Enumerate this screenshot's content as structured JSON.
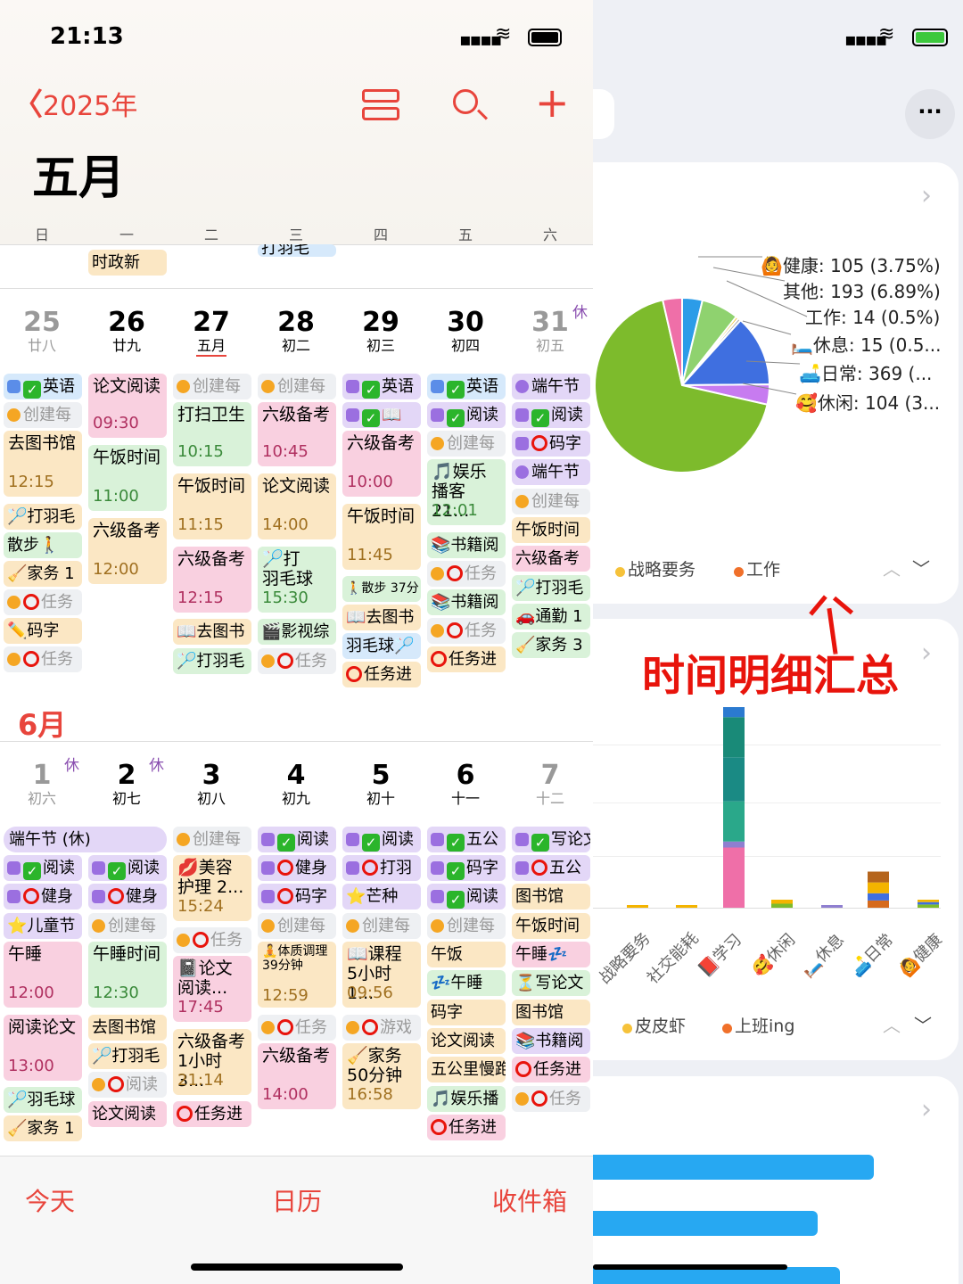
{
  "status_bar": {
    "time": "21:13"
  },
  "header": {
    "back_year": "2025年",
    "month_title": "五月"
  },
  "weekdays": [
    "日",
    "一",
    "二",
    "三",
    "四",
    "五",
    "六"
  ],
  "top_events": {
    "monday": "时政新",
    "wednesday": "打羽毛"
  },
  "week1": {
    "days": [
      {
        "num": "25",
        "lunar": "廿八"
      },
      {
        "num": "26",
        "lunar": "廿九"
      },
      {
        "num": "27",
        "lunar": "五月"
      },
      {
        "num": "28",
        "lunar": "初二"
      },
      {
        "num": "29",
        "lunar": "初三"
      },
      {
        "num": "30",
        "lunar": "初四"
      },
      {
        "num": "31",
        "lunar": "初五"
      }
    ],
    "holiday_mark": "休",
    "events": {
      "sun": [
        "英语",
        "创建每",
        "去图书馆",
        "12:15",
        "🏸打羽毛",
        "散步🚶",
        "🧹家务 1",
        "任务",
        "✏️码字",
        "任务"
      ],
      "mon": [
        "论文阅读",
        "09:30",
        "午饭时间",
        "11:00",
        "六级备考",
        "12:00"
      ],
      "tue": [
        "创建每",
        "打扫卫生",
        "10:15",
        "午饭时间",
        "11:15",
        "六级备考",
        "12:15",
        "📖去图书",
        "🏸打羽毛"
      ],
      "wed": [
        "创建每",
        "六级备考",
        "10:45",
        "论文阅读",
        "14:00",
        "🏸打",
        "羽毛球",
        "15:30",
        "🎬影视综",
        "任务"
      ],
      "thu": [
        "英语",
        "📖",
        "六级备考",
        "10:00",
        "午饭时间",
        "11:45",
        "🚶散步 37分",
        "📖去图书",
        "羽毛球🏸",
        "任务进"
      ],
      "fri": [
        "英语",
        "阅读",
        "创建每",
        "🎵娱乐",
        "播客 21...",
        "12:01",
        "📚书籍阅",
        "任务",
        "📚书籍阅",
        "任务",
        "任务进"
      ],
      "sat": [
        "端午节",
        "阅读",
        "码字",
        "端午节",
        "创建每",
        "午饭时间",
        "六级备考",
        "🏸打羽毛",
        "🚗通勤 1",
        "🧹家务 3"
      ]
    }
  },
  "june": {
    "label": "6月"
  },
  "week2": {
    "days": [
      {
        "num": "1",
        "lunar": "初六"
      },
      {
        "num": "2",
        "lunar": "初七"
      },
      {
        "num": "3",
        "lunar": "初八"
      },
      {
        "num": "4",
        "lunar": "初九"
      },
      {
        "num": "5",
        "lunar": "初十"
      },
      {
        "num": "6",
        "lunar": "十一"
      },
      {
        "num": "7",
        "lunar": "十二"
      }
    ],
    "holiday_mark": "休",
    "allday": "端午节 (休)",
    "events": {
      "sun": [
        "阅读",
        "健身",
        "⭐儿童节",
        "午睡",
        "12:00",
        "阅读论文",
        "13:00",
        "🏸羽毛球",
        "🧹家务 1"
      ],
      "mon": [
        "阅读",
        "健身",
        "创建每",
        "午睡时间",
        "12:30",
        "去图书馆",
        "🏸打羽毛",
        "阅读",
        "论文阅读"
      ],
      "tue": [
        "创建每",
        "💋美容",
        "护理 2...",
        "15:24",
        "任务",
        "📓论文",
        "阅读...",
        "17:45",
        "六级备考",
        "1小时 3...",
        "21:14",
        "任务进"
      ],
      "wed": [
        "阅读",
        "健身",
        "码字",
        "创建每",
        "🧘体质调理",
        "39分钟",
        "12:59",
        "任务",
        "六级备考",
        "14:00"
      ],
      "thu": [
        "阅读",
        "打羽",
        "⭐芒种",
        "创建每",
        "📖课程",
        "5小时1...",
        "09:56",
        "游戏",
        "🧹家务",
        "50分钟",
        "16:58"
      ],
      "fri": [
        "五公",
        "码字",
        "阅读",
        "创建每",
        "午饭",
        "💤午睡",
        "码字",
        "论文阅读",
        "五公里慢跑",
        "🎵娱乐播",
        "任务进"
      ],
      "sat": [
        "写论文",
        "五公",
        "图书馆",
        "午饭时间",
        "午睡💤",
        "⏳写论文",
        "图书馆",
        "📚书籍阅",
        "任务进",
        "任务"
      ]
    }
  },
  "tabbar": {
    "today": "今天",
    "calendar": "日历",
    "inbox": "收件箱"
  },
  "right_panel": {
    "more_label": "···",
    "pie_labels": [
      "🙆健康: 105 (3.75%)",
      "其他: 193 (6.89%)",
      "工作: 14 (0.5%)",
      "🛏️休息: 15 (0.5...",
      "🛋️日常: 369 (...",
      "🥰休闲: 104 (3..."
    ],
    "legend1": [
      "战略要务",
      "工作"
    ],
    "annotation": "时间明细汇总",
    "bar_categories": [
      "战略要务",
      "社交能耗",
      "📕学习",
      "🥰休闲",
      "🛏️休息",
      "🛋️日常",
      "🙆健康"
    ],
    "legend2": [
      "皮皮虾",
      "上班ing"
    ],
    "colors": {
      "accent": "#e8453c",
      "annotation": "#e8140c",
      "pie_green": "#7dbb2c",
      "bar_blue": "#27a8f2"
    }
  },
  "chart_data": [
    {
      "type": "pie",
      "title": "",
      "slices": [
        {
          "label": "健康",
          "value": 105,
          "pct": "3.75%",
          "color": "#2c9ce8"
        },
        {
          "label": "其他",
          "value": 193,
          "pct": "6.89%",
          "color": "#8fd26f"
        },
        {
          "label": "工作",
          "value": 14,
          "pct": "0.5%",
          "color": "#f0c23a"
        },
        {
          "label": "休息",
          "value": 15,
          "pct": "0.5...",
          "color": "#aaaaaa"
        },
        {
          "label": "日常",
          "value": 369,
          "pct": "",
          "color": "#3f6fe0"
        },
        {
          "label": "休闲",
          "value": 104,
          "pct": "3...",
          "color": "#c77bf0"
        },
        {
          "label": "学习",
          "value": 1900,
          "pct": "",
          "color": "#7dbb2c"
        },
        {
          "label": "战略要务",
          "value": 100,
          "pct": "",
          "color": "#ef6fa8"
        }
      ]
    },
    {
      "type": "bar",
      "title": "",
      "categories": [
        "战略要务",
        "社交能耗",
        "学习",
        "休闲",
        "休息",
        "日常",
        "健康"
      ],
      "values": [
        1,
        1,
        100,
        4,
        1,
        18,
        4
      ]
    },
    {
      "type": "bar",
      "title": "",
      "categories": [
        "",
        "",
        ""
      ],
      "values": [
        100,
        80,
        88
      ]
    }
  ]
}
